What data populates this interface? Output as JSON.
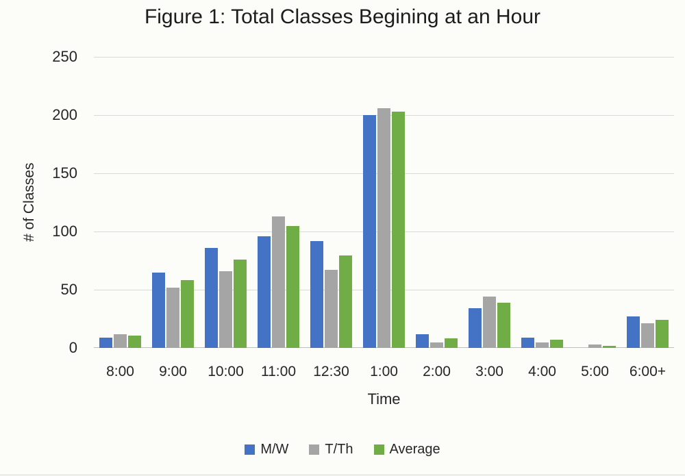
{
  "figure": {
    "title": "Figure 1: Total Classes Begining at an Hour",
    "xlabel": "Time",
    "ylabel": "# of Classes"
  },
  "chart_data": {
    "type": "bar",
    "title": "Figure 1: Total Classes Begining at an Hour",
    "xlabel": "Time",
    "ylabel": "# of Classes",
    "categories": [
      "8:00",
      "9:00",
      "10:00",
      "11:00",
      "12:30",
      "1:00",
      "2:00",
      "3:00",
      "4:00",
      "5:00",
      "6:00+"
    ],
    "series": [
      {
        "name": "M/W",
        "color": "#4472C4",
        "values": [
          9,
          65,
          86,
          96,
          92,
          200,
          12,
          34,
          9,
          0,
          27
        ]
      },
      {
        "name": "T/Th",
        "color": "#A5A5A5",
        "values": [
          12,
          52,
          66,
          113,
          67,
          206,
          5,
          44,
          5,
          3,
          21
        ]
      },
      {
        "name": "Average",
        "color": "#70AD47",
        "values": [
          10.5,
          58.5,
          76,
          104.5,
          79.5,
          203,
          8.5,
          39,
          7,
          1.5,
          24
        ]
      }
    ],
    "ylim": [
      0,
      250
    ],
    "yticks": [
      0,
      50,
      100,
      150,
      200,
      250
    ],
    "grid": true,
    "legend_position": "bottom",
    "colors": {
      "gridline": "#D9D9D9",
      "axis_line": "#BDBDBD",
      "text": "#262626",
      "background": "#FCFCF9"
    }
  }
}
